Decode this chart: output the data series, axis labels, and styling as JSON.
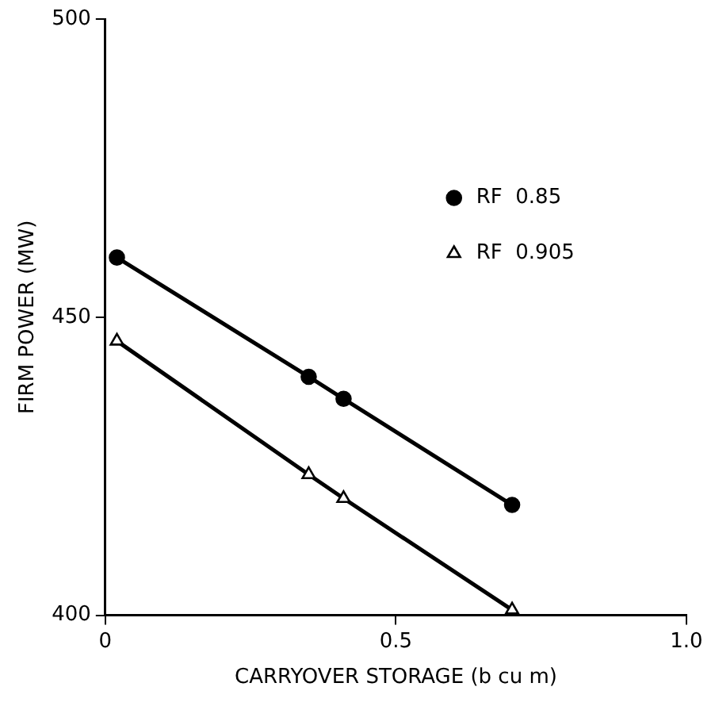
{
  "chart_data": {
    "type": "line",
    "xlabel": "CARRYOVER STORAGE (b cu m)",
    "ylabel": "FIRM POWER (MW)",
    "x": [
      0.02,
      0.35,
      0.41,
      0.7
    ],
    "series": [
      {
        "name": "RF  0.85",
        "color": "#000000",
        "marker": "circle",
        "values": [
          460,
          440,
          436.3,
          418.5
        ]
      },
      {
        "name": "RF  0.905",
        "color": "#000000",
        "marker": "triangle",
        "values": [
          446,
          423.6,
          419.6,
          400.9
        ]
      }
    ],
    "xlim": [
      0,
      1.0
    ],
    "xticks": [
      0,
      0.5,
      {
        "value": 1.0,
        "label": "1.0"
      }
    ],
    "ylim": [
      400,
      500
    ],
    "yticks": [
      400,
      450,
      500
    ],
    "grid": false,
    "legend": "top right"
  }
}
